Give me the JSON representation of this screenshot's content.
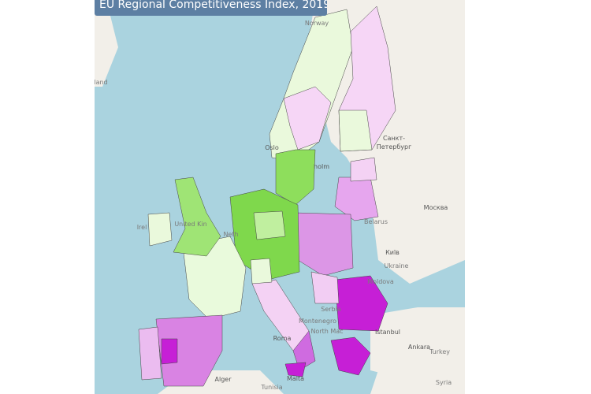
{
  "header": {
    "title": "EU Regional Competitiveness Index, 2019"
  },
  "places": [
    {
      "text": "Norway"
    },
    {
      "text": "Oslo"
    },
    {
      "text": "holm"
    },
    {
      "text": "Санкт-"
    },
    {
      "text": "Петербург"
    },
    {
      "text": "Москва"
    },
    {
      "text": "Belarus"
    },
    {
      "text": "Київ"
    },
    {
      "text": "Ukraine"
    },
    {
      "text": "Moldova"
    },
    {
      "text": "Istanbul"
    },
    {
      "text": "Ankara"
    },
    {
      "text": "Turkey"
    },
    {
      "text": "Syria"
    },
    {
      "text": "Alger"
    },
    {
      "text": "Tunisia"
    },
    {
      "text": "Malta"
    },
    {
      "text": "Roma"
    },
    {
      "text": "Serbia"
    },
    {
      "text": "Montenegro"
    },
    {
      "text": "North Mac"
    },
    {
      "text": "land"
    },
    {
      "text": "United Kin"
    },
    {
      "text": "Irel"
    },
    {
      "text": "Neth"
    }
  ]
}
